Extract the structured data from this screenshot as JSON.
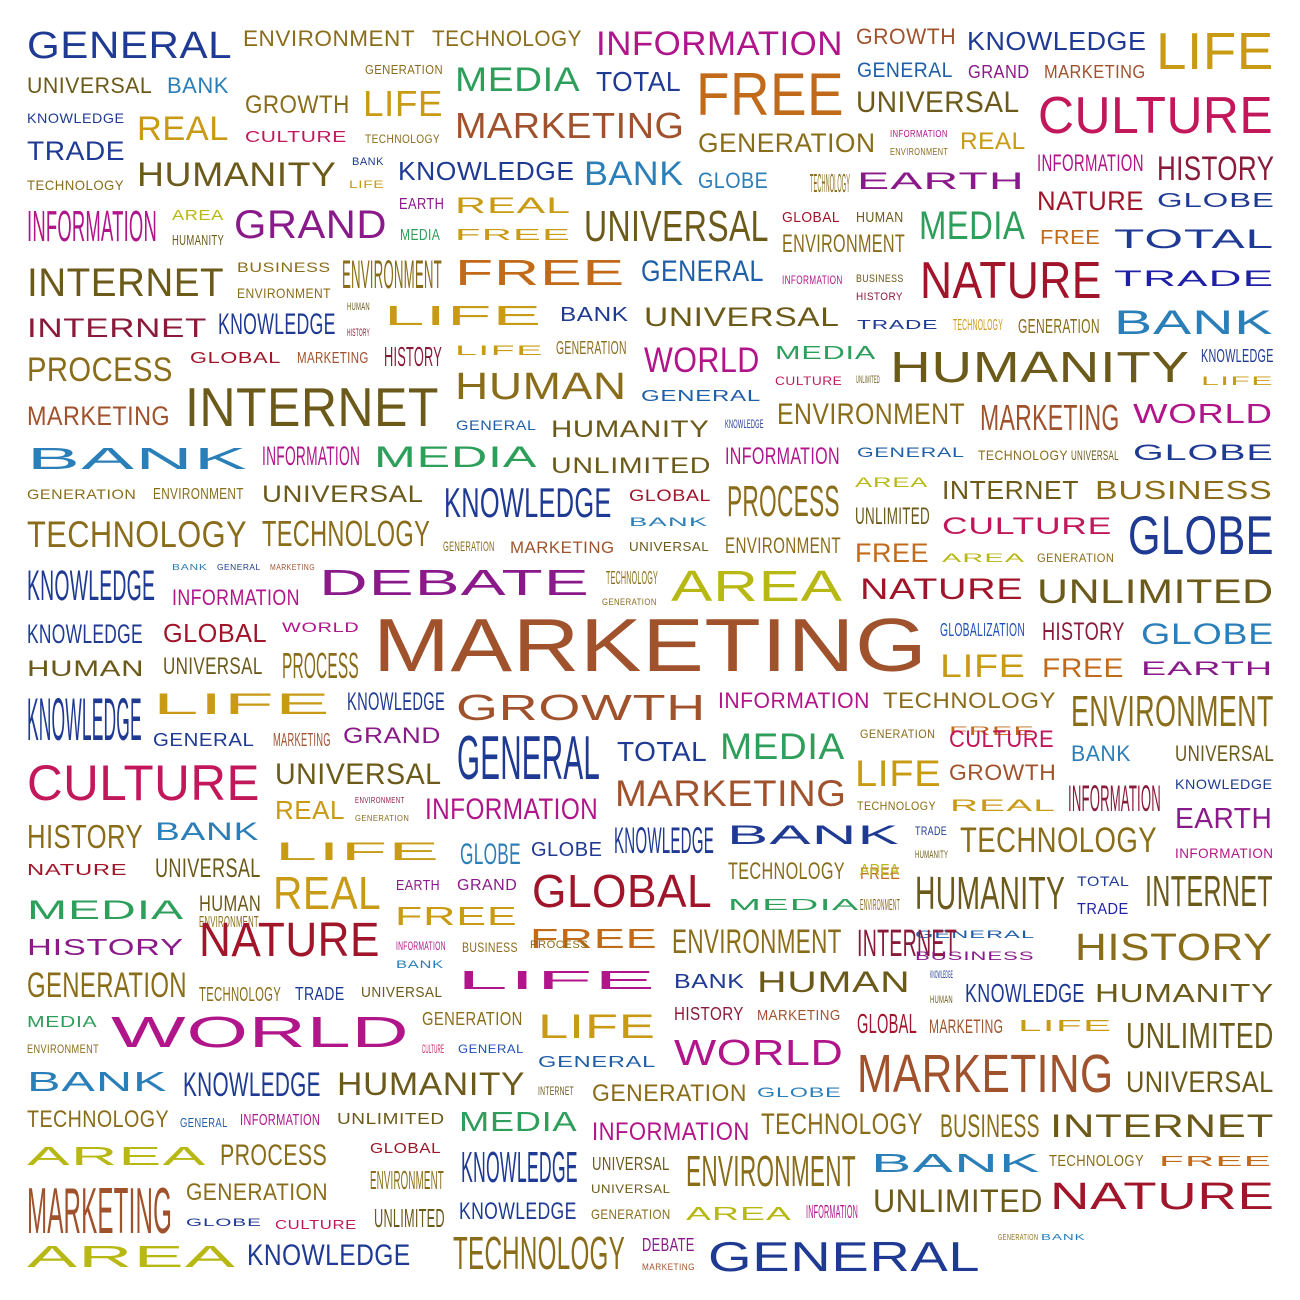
{
  "words": [
    {
      "text": "GENERAL",
      "color": "#1f3a93"
    },
    {
      "text": "ENVIRONMENT",
      "color": "#8a6d1a"
    },
    {
      "text": "TECHNOLOGY",
      "color": "#8a6d1a"
    },
    {
      "text": "INFORMATION",
      "color": "#b0158a"
    },
    {
      "text": "GROWTH",
      "color": "#a0522d"
    },
    {
      "text": "KNOWLEDGE",
      "color": "#1f3a93"
    },
    {
      "text": "LIFE",
      "color": "#c99a14"
    },
    {
      "text": "UNIVERSAL",
      "color": "#6b5a1a"
    },
    {
      "text": "BANK",
      "color": "#2b7fb8"
    },
    {
      "text": "CULTURE",
      "color": "#c2185b"
    },
    {
      "text": "GENERATION",
      "color": "#8a6d1a"
    },
    {
      "text": "MEDIA",
      "color": "#2e9e5b"
    },
    {
      "text": "TOTAL",
      "color": "#1f3a93"
    },
    {
      "text": "FREE",
      "color": "#c06a1a"
    },
    {
      "text": "GENERAL",
      "color": "#1f5fa8"
    },
    {
      "text": "GRAND",
      "color": "#8a1a8a"
    },
    {
      "text": "MARKETING",
      "color": "#a0522d"
    },
    {
      "text": "KNOWLEDGE",
      "color": "#1f3a93"
    },
    {
      "text": "GROWTH",
      "color": "#8a6d1a"
    },
    {
      "text": "LIFE",
      "color": "#c99a14"
    },
    {
      "text": "REAL",
      "color": "#c99a14"
    },
    {
      "text": "MARKETING",
      "color": "#a0522d"
    },
    {
      "text": "UNIVERSAL",
      "color": "#6b5a1a"
    },
    {
      "text": "CULTURE",
      "color": "#c2185b"
    },
    {
      "text": "TECHNOLOGY",
      "color": "#8a6d1a"
    },
    {
      "text": "INFORMATION",
      "color": "#b0158a"
    },
    {
      "text": "GENERATION",
      "color": "#8a6d1a"
    },
    {
      "text": "ENVIRONMENT",
      "color": "#8a6d1a"
    },
    {
      "text": "REAL",
      "color": "#c99a14"
    },
    {
      "text": "TRADE",
      "color": "#1f3a93"
    },
    {
      "text": "INFORMATION",
      "color": "#b0158a"
    },
    {
      "text": "HISTORY",
      "color": "#8a1a3a"
    },
    {
      "text": "HUMANITY",
      "color": "#6b5a1a"
    },
    {
      "text": "BANK",
      "color": "#1f3a93"
    },
    {
      "text": "KNOWLEDGE",
      "color": "#1f3a93"
    },
    {
      "text": "BANK",
      "color": "#2b7fb8"
    },
    {
      "text": "GLOBE",
      "color": "#2b7fb8"
    },
    {
      "text": "LIFE",
      "color": "#c99a14"
    },
    {
      "text": "TECHNOLOGY",
      "color": "#8a6d1a"
    },
    {
      "text": "EARTH",
      "color": "#8a1a8a"
    },
    {
      "text": "TECHNOLOGY",
      "color": "#8a6d1a"
    },
    {
      "text": "GLOBE",
      "color": "#1f3a93"
    },
    {
      "text": "NATURE",
      "color": "#a0152a"
    },
    {
      "text": "INFORMATION",
      "color": "#b0158a"
    },
    {
      "text": "AREA",
      "color": "#b8b814"
    },
    {
      "text": "GRAND",
      "color": "#8a1a8a"
    },
    {
      "text": "EARTH",
      "color": "#8a1a8a"
    },
    {
      "text": "REAL",
      "color": "#c99a14"
    },
    {
      "text": "UNIVERSAL",
      "color": "#6b5a1a"
    },
    {
      "text": "GLOBAL",
      "color": "#a0152a"
    },
    {
      "text": "HUMAN",
      "color": "#6b5a1a"
    },
    {
      "text": "MEDIA",
      "color": "#2e9e5b"
    },
    {
      "text": "FREE",
      "color": "#c06a1a"
    },
    {
      "text": "TOTAL",
      "color": "#1f3a93"
    },
    {
      "text": "HUMANITY",
      "color": "#6b5a1a"
    },
    {
      "text": "MEDIA",
      "color": "#2e9e5b"
    },
    {
      "text": "FREE",
      "color": "#c99a14"
    },
    {
      "text": "ENVIRONMENT",
      "color": "#8a6d1a"
    },
    {
      "text": "INTERNET",
      "color": "#6b5a1a"
    },
    {
      "text": "BUSINESS",
      "color": "#8a6d1a"
    },
    {
      "text": "ENVIRONMENT",
      "color": "#8a6d1a"
    },
    {
      "text": "FREE",
      "color": "#c06a1a"
    },
    {
      "text": "GENERAL",
      "color": "#1f5fa8"
    },
    {
      "text": "NATURE",
      "color": "#a0152a"
    },
    {
      "text": "TRADE",
      "color": "#1f1fa8"
    },
    {
      "text": "ENVIRONMENT",
      "color": "#8a6d1a"
    },
    {
      "text": "INFORMATION",
      "color": "#b0158a"
    },
    {
      "text": "BUSINESS",
      "color": "#6b5a1a"
    },
    {
      "text": "HISTORY",
      "color": "#8a1a3a"
    },
    {
      "text": "INTERNET",
      "color": "#8a1a3a"
    },
    {
      "text": "KNOWLEDGE",
      "color": "#1f3a93"
    },
    {
      "text": "HUMAN",
      "color": "#6b5a1a"
    },
    {
      "text": "LIFE",
      "color": "#c99a14"
    },
    {
      "text": "BANK",
      "color": "#1f3a93"
    },
    {
      "text": "UNIVERSAL",
      "color": "#6b5a1a"
    },
    {
      "text": "TRADE",
      "color": "#1f3a93"
    },
    {
      "text": "TECHNOLOGY",
      "color": "#c99a14"
    },
    {
      "text": "GENERATION",
      "color": "#8a6d1a"
    },
    {
      "text": "BANK",
      "color": "#2b7fb8"
    },
    {
      "text": "HISTORY",
      "color": "#8a1a3a"
    },
    {
      "text": "PROCESS",
      "color": "#8a6d1a"
    },
    {
      "text": "GLOBAL",
      "color": "#a0152a"
    },
    {
      "text": "MARKETING",
      "color": "#a0522d"
    },
    {
      "text": "HISTORY",
      "color": "#8a1a3a"
    },
    {
      "text": "LIFE",
      "color": "#c99a14"
    },
    {
      "text": "GENERATION",
      "color": "#8a6d1a"
    },
    {
      "text": "WORLD",
      "color": "#b0158a"
    },
    {
      "text": "MEDIA",
      "color": "#2e9e5b"
    },
    {
      "text": "HUMANITY",
      "color": "#6b5a1a"
    },
    {
      "text": "KNOWLEDGE",
      "color": "#1f3a93"
    },
    {
      "text": "HUMAN",
      "color": "#8a6d1a"
    },
    {
      "text": "CULTURE",
      "color": "#c2185b"
    },
    {
      "text": "UNLIMITED",
      "color": "#6b5a1a"
    },
    {
      "text": "LIFE",
      "color": "#c99a14"
    },
    {
      "text": "MARKETING",
      "color": "#a0522d"
    },
    {
      "text": "INTERNET",
      "color": "#6b5a1a"
    },
    {
      "text": "GENERAL",
      "color": "#1f5fa8"
    },
    {
      "text": "ENVIRONMENT",
      "color": "#8a6d1a"
    },
    {
      "text": "MARKETING",
      "color": "#a0522d"
    },
    {
      "text": "WORLD",
      "color": "#b0158a"
    },
    {
      "text": "GENERAL",
      "color": "#1f5fa8"
    },
    {
      "text": "HUMANITY",
      "color": "#6b5a1a"
    },
    {
      "text": "KNOWLEDGE",
      "color": "#1f3a93"
    },
    {
      "text": "BANK",
      "color": "#2b7fb8"
    },
    {
      "text": "INFORMATION",
      "color": "#b0158a"
    },
    {
      "text": "MEDIA",
      "color": "#2e9e5b"
    },
    {
      "text": "UNLIMITED",
      "color": "#6b5a1a"
    },
    {
      "text": "INFORMATION",
      "color": "#b0158a"
    },
    {
      "text": "GENERAL",
      "color": "#1f5fa8"
    },
    {
      "text": "TECHNOLOGY",
      "color": "#8a6d1a"
    },
    {
      "text": "UNIVERSAL",
      "color": "#6b5a1a"
    },
    {
      "text": "GLOBE",
      "color": "#1f3a93"
    },
    {
      "text": "GENERATION",
      "color": "#8a6d1a"
    },
    {
      "text": "ENVIRONMENT",
      "color": "#8a6d1a"
    },
    {
      "text": "UNIVERSAL",
      "color": "#6b5a1a"
    },
    {
      "text": "KNOWLEDGE",
      "color": "#1f3a93"
    },
    {
      "text": "GLOBAL",
      "color": "#a0152a"
    },
    {
      "text": "PROCESS",
      "color": "#8a6d1a"
    },
    {
      "text": "AREA",
      "color": "#b8b814"
    },
    {
      "text": "INTERNET",
      "color": "#6b5a1a"
    },
    {
      "text": "BUSINESS",
      "color": "#8a6d1a"
    },
    {
      "text": "TECHNOLOGY",
      "color": "#8a6d1a"
    },
    {
      "text": "TECHNOLOGY",
      "color": "#8a6d1a"
    },
    {
      "text": "BANK",
      "color": "#2b7fb8"
    },
    {
      "text": "UNLIMITED",
      "color": "#6b5a1a"
    },
    {
      "text": "CULTURE",
      "color": "#c2185b"
    },
    {
      "text": "GLOBE",
      "color": "#1f3a93"
    },
    {
      "text": "GENERATION",
      "color": "#8a6d1a"
    },
    {
      "text": "MARKETING",
      "color": "#a0522d"
    },
    {
      "text": "UNIVERSAL",
      "color": "#6b5a1a"
    },
    {
      "text": "ENVIRONMENT",
      "color": "#8a6d1a"
    },
    {
      "text": "FREE",
      "color": "#c06a1a"
    },
    {
      "text": "AREA",
      "color": "#b8b814"
    },
    {
      "text": "GENERATION",
      "color": "#8a6d1a"
    },
    {
      "text": "KNOWLEDGE",
      "color": "#1f3a93"
    },
    {
      "text": "BANK",
      "color": "#2b7fb8"
    },
    {
      "text": "GENERAL",
      "color": "#1f3a93"
    },
    {
      "text": "MARKETING",
      "color": "#a0522d"
    },
    {
      "text": "DEBATE",
      "color": "#8a1a8a"
    },
    {
      "text": "TECHNOLOGY",
      "color": "#8a6d1a"
    },
    {
      "text": "AREA",
      "color": "#b8b814"
    },
    {
      "text": "NATURE",
      "color": "#a0152a"
    },
    {
      "text": "UNLIMITED",
      "color": "#6b5a1a"
    },
    {
      "text": "INFORMATION",
      "color": "#b0158a"
    },
    {
      "text": "GENERATION",
      "color": "#8a6d1a"
    },
    {
      "text": "KNOWLEDGE",
      "color": "#1f3a93"
    },
    {
      "text": "GLOBAL",
      "color": "#a0152a"
    },
    {
      "text": "WORLD",
      "color": "#b0158a"
    },
    {
      "text": "MARKETING",
      "color": "#a0522d"
    },
    {
      "text": "GLOBALIZATION",
      "color": "#1f4fb8"
    },
    {
      "text": "HISTORY",
      "color": "#8a1a3a"
    },
    {
      "text": "GLOBE",
      "color": "#2b7fb8"
    },
    {
      "text": "HUMAN",
      "color": "#6b5a1a"
    },
    {
      "text": "UNIVERSAL",
      "color": "#6b5a1a"
    },
    {
      "text": "PROCESS",
      "color": "#8a6d1a"
    },
    {
      "text": "LIFE",
      "color": "#c99a14"
    },
    {
      "text": "FREE",
      "color": "#c06a1a"
    },
    {
      "text": "EARTH",
      "color": "#8a1a8a"
    },
    {
      "text": "KNOWLEDGE",
      "color": "#1f3a93"
    },
    {
      "text": "LIFE",
      "color": "#c99a14"
    },
    {
      "text": "KNOWLEDGE",
      "color": "#1f3a93"
    },
    {
      "text": "GROWTH",
      "color": "#a0522d"
    },
    {
      "text": "INFORMATION",
      "color": "#b0158a"
    },
    {
      "text": "TECHNOLOGY",
      "color": "#8a6d1a"
    },
    {
      "text": "ENVIRONMENT",
      "color": "#8a6d1a"
    },
    {
      "text": "GENERAL",
      "color": "#1f3a93"
    },
    {
      "text": "MARKETING",
      "color": "#a0522d"
    },
    {
      "text": "GRAND",
      "color": "#8a1a8a"
    },
    {
      "text": "GENERAL",
      "color": "#1f3a93"
    },
    {
      "text": "FREE",
      "color": "#c06a1a"
    },
    {
      "text": "TOTAL",
      "color": "#1f3a93"
    },
    {
      "text": "MEDIA",
      "color": "#2e9e5b"
    },
    {
      "text": "GENERATION",
      "color": "#8a6d1a"
    },
    {
      "text": "CULTURE",
      "color": "#c2185b"
    },
    {
      "text": "BANK",
      "color": "#2b7fb8"
    },
    {
      "text": "UNIVERSAL",
      "color": "#6b5a1a"
    },
    {
      "text": "CULTURE",
      "color": "#c2185b"
    },
    {
      "text": "UNIVERSAL",
      "color": "#6b5a1a"
    },
    {
      "text": "MARKETING",
      "color": "#a0522d"
    },
    {
      "text": "LIFE",
      "color": "#c99a14"
    },
    {
      "text": "GROWTH",
      "color": "#a0522d"
    },
    {
      "text": "KNOWLEDGE",
      "color": "#1f3a93"
    },
    {
      "text": "REAL",
      "color": "#c99a14"
    },
    {
      "text": "ENVIRONMENT",
      "color": "#8a1a3a"
    },
    {
      "text": "INFORMATION",
      "color": "#8a1a3a"
    },
    {
      "text": "GENERATION",
      "color": "#8a6d1a"
    },
    {
      "text": "INFORMATION",
      "color": "#b0158a"
    },
    {
      "text": "TECHNOLOGY",
      "color": "#8a6d1a"
    },
    {
      "text": "REAL",
      "color": "#c99a14"
    },
    {
      "text": "EARTH",
      "color": "#8a1a8a"
    },
    {
      "text": "HISTORY",
      "color": "#8a6d1a"
    },
    {
      "text": "BANK",
      "color": "#2b7fb8"
    },
    {
      "text": "KNOWLEDGE",
      "color": "#1f3a93"
    },
    {
      "text": "BANK",
      "color": "#1f3a93"
    },
    {
      "text": "TRADE",
      "color": "#1f3a93"
    },
    {
      "text": "TECHNOLOGY",
      "color": "#8a6d1a"
    },
    {
      "text": "LIFE",
      "color": "#c99a14"
    },
    {
      "text": "GLOBE",
      "color": "#2b7fb8"
    },
    {
      "text": "GLOBE",
      "color": "#1f3a93"
    },
    {
      "text": "HUMANITY",
      "color": "#6b5a1a"
    },
    {
      "text": "INFORMATION",
      "color": "#b0158a"
    },
    {
      "text": "NATURE",
      "color": "#a0152a"
    },
    {
      "text": "UNIVERSAL",
      "color": "#6b5a1a"
    },
    {
      "text": "TECHNOLOGY",
      "color": "#8a6d1a"
    },
    {
      "text": "FREE",
      "color": "#c06a1a"
    },
    {
      "text": "MEDIA",
      "color": "#2e9e5b"
    },
    {
      "text": "HUMAN",
      "color": "#6b5a1a"
    },
    {
      "text": "GLOBAL",
      "color": "#a0152a"
    },
    {
      "text": "REAL",
      "color": "#c99a14"
    },
    {
      "text": "EARTH",
      "color": "#8a1a8a"
    },
    {
      "text": "GRAND",
      "color": "#8a1a8a"
    },
    {
      "text": "AREA",
      "color": "#b8b814"
    },
    {
      "text": "HUMANITY",
      "color": "#6b5a1a"
    },
    {
      "text": "TOTAL",
      "color": "#1f3a93"
    },
    {
      "text": "INTERNET",
      "color": "#6b5a1a"
    },
    {
      "text": "ENVIRONMENT",
      "color": "#8a6d1a"
    },
    {
      "text": "FREE",
      "color": "#c99a14"
    },
    {
      "text": "MEDIA",
      "color": "#2e9e5b"
    },
    {
      "text": "ENVIRONMENT",
      "color": "#8a6d1a"
    },
    {
      "text": "TRADE",
      "color": "#1f1fa8"
    },
    {
      "text": "HISTORY",
      "color": "#8a1a8a"
    },
    {
      "text": "NATURE",
      "color": "#a0152a"
    },
    {
      "text": "GENERAL",
      "color": "#1f5fa8"
    },
    {
      "text": "FREE",
      "color": "#c06a1a"
    },
    {
      "text": "ENVIRONMENT",
      "color": "#8a6d1a"
    },
    {
      "text": "INTERNET",
      "color": "#8a1a3a"
    },
    {
      "text": "BUSINESS",
      "color": "#8a1a8a"
    },
    {
      "text": "INFORMATION",
      "color": "#b0158a"
    },
    {
      "text": "BUSINESS",
      "color": "#8a6d1a"
    },
    {
      "text": "PROCESS",
      "color": "#8a6d1a"
    },
    {
      "text": "HISTORY",
      "color": "#8a6d1a"
    },
    {
      "text": "BANK",
      "color": "#2b7fb8"
    },
    {
      "text": "GENERATION",
      "color": "#8a6d1a"
    },
    {
      "text": "TECHNOLOGY",
      "color": "#8a6d1a"
    },
    {
      "text": "TRADE",
      "color": "#1f3a93"
    },
    {
      "text": "UNIVERSAL",
      "color": "#6b5a1a"
    },
    {
      "text": "LIFE",
      "color": "#b0158a"
    },
    {
      "text": "BANK",
      "color": "#1f3a93"
    },
    {
      "text": "HUMAN",
      "color": "#6b5a1a"
    },
    {
      "text": "KNOWLEDGE",
      "color": "#1f3a93"
    },
    {
      "text": "HUMAN",
      "color": "#6b5a1a"
    },
    {
      "text": "KNOWLEDGE",
      "color": "#1f3a93"
    },
    {
      "text": "HUMANITY",
      "color": "#6b5a1a"
    },
    {
      "text": "MEDIA",
      "color": "#2e9e5b"
    },
    {
      "text": "WORLD",
      "color": "#b0158a"
    },
    {
      "text": "GENERATION",
      "color": "#8a6d1a"
    },
    {
      "text": "LIFE",
      "color": "#c99a14"
    },
    {
      "text": "HISTORY",
      "color": "#8a1a3a"
    },
    {
      "text": "MARKETING",
      "color": "#a0522d"
    },
    {
      "text": "GLOBAL",
      "color": "#a0152a"
    },
    {
      "text": "MARKETING",
      "color": "#a0522d"
    },
    {
      "text": "LIFE",
      "color": "#c99a14"
    },
    {
      "text": "UNLIMITED",
      "color": "#6b5a1a"
    },
    {
      "text": "ENVIRONMENT",
      "color": "#8a6d1a"
    },
    {
      "text": "CULTURE",
      "color": "#c2185b"
    },
    {
      "text": "GENERAL",
      "color": "#1f4fb8"
    },
    {
      "text": "GENERAL",
      "color": "#1f5fa8"
    },
    {
      "text": "WORLD",
      "color": "#b0158a"
    },
    {
      "text": "MARKETING",
      "color": "#a0522d"
    },
    {
      "text": "BANK",
      "color": "#2b7fb8"
    },
    {
      "text": "KNOWLEDGE",
      "color": "#1f3a93"
    },
    {
      "text": "HUMANITY",
      "color": "#6b5a1a"
    },
    {
      "text": "INTERNET",
      "color": "#6b5a1a"
    },
    {
      "text": "GENERATION",
      "color": "#8a6d1a"
    },
    {
      "text": "GLOBE",
      "color": "#2b7fb8"
    },
    {
      "text": "UNIVERSAL",
      "color": "#6b5a1a"
    },
    {
      "text": "TECHNOLOGY",
      "color": "#8a6d1a"
    },
    {
      "text": "GENERAL",
      "color": "#1f5fa8"
    },
    {
      "text": "INFORMATION",
      "color": "#b0158a"
    },
    {
      "text": "UNLIMITED",
      "color": "#6b5a1a"
    },
    {
      "text": "MEDIA",
      "color": "#2e9e5b"
    },
    {
      "text": "INFORMATION",
      "color": "#b0158a"
    },
    {
      "text": "TECHNOLOGY",
      "color": "#8a6d1a"
    },
    {
      "text": "BUSINESS",
      "color": "#8a6d1a"
    },
    {
      "text": "INTERNET",
      "color": "#6b5a1a"
    },
    {
      "text": "AREA",
      "color": "#b8b814"
    },
    {
      "text": "PROCESS",
      "color": "#8a6d1a"
    },
    {
      "text": "GLOBAL",
      "color": "#a0152a"
    },
    {
      "text": "KNOWLEDGE",
      "color": "#1f3a93"
    },
    {
      "text": "UNIVERSAL",
      "color": "#6b5a1a"
    },
    {
      "text": "ENVIRONMENT",
      "color": "#8a6d1a"
    },
    {
      "text": "BANK",
      "color": "#2b7fb8"
    },
    {
      "text": "TECHNOLOGY",
      "color": "#8a6d1a"
    },
    {
      "text": "FREE",
      "color": "#c06a1a"
    },
    {
      "text": "ENVIRONMENT",
      "color": "#8a6d1a"
    },
    {
      "text": "UNIVERSAL",
      "color": "#6b5a1a"
    },
    {
      "text": "MARKETING",
      "color": "#a0522d"
    },
    {
      "text": "GENERATION",
      "color": "#8a6d1a"
    },
    {
      "text": "GLOBE",
      "color": "#1f3a93"
    },
    {
      "text": "CULTURE",
      "color": "#c2185b"
    },
    {
      "text": "UNLIMITED",
      "color": "#6b5a1a"
    },
    {
      "text": "KNOWLEDGE",
      "color": "#1f3a93"
    },
    {
      "text": "GENERATION",
      "color": "#8a6d1a"
    },
    {
      "text": "AREA",
      "color": "#b8b814"
    },
    {
      "text": "INFORMATION",
      "color": "#b0158a"
    },
    {
      "text": "UNLIMITED",
      "color": "#6b5a1a"
    },
    {
      "text": "NATURE",
      "color": "#a0152a"
    },
    {
      "text": "AREA",
      "color": "#b8b814"
    },
    {
      "text": "KNOWLEDGE",
      "color": "#1f3a93"
    },
    {
      "text": "TECHNOLOGY",
      "color": "#8a6d1a"
    },
    {
      "text": "DEBATE",
      "color": "#8a1a8a"
    },
    {
      "text": "MARKETING",
      "color": "#a0522d"
    },
    {
      "text": "GENERAL",
      "color": "#1f3a93"
    },
    {
      "text": "GENERATION",
      "color": "#8a6d1a"
    },
    {
      "text": "BANK",
      "color": "#2b7fb8"
    }
  ]
}
